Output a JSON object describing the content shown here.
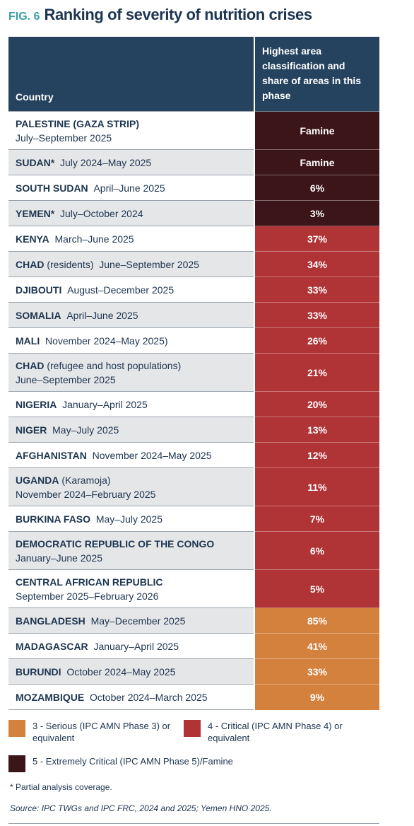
{
  "header": {
    "fig": "FIG. 6",
    "title": "Ranking of severity of nutrition crises"
  },
  "table": {
    "header_color": "#25435f",
    "columns": [
      "Country",
      "Highest area classification and share of areas in this phase"
    ],
    "rows": [
      {
        "name": "PALESTINE (GAZA STRIP)",
        "period": "July–September 2025",
        "value": "Famine",
        "color": "#3c1518"
      },
      {
        "name": "SUDAN*",
        "period": "July 2024–May 2025",
        "value": "Famine",
        "color": "#3c1518"
      },
      {
        "name": "SOUTH SUDAN",
        "period": "April–June 2025",
        "value": "6%",
        "color": "#3c1518"
      },
      {
        "name": "YEMEN*",
        "period": "July–October 2024",
        "value": "3%",
        "color": "#3c1518"
      },
      {
        "name": "KENYA",
        "period": "March–June 2025",
        "value": "37%",
        "color": "#b03335"
      },
      {
        "name": "CHAD",
        "note": "(residents)",
        "period": "June–September 2025",
        "value": "34%",
        "color": "#b03335"
      },
      {
        "name": "DJIBOUTI",
        "period": "August–December 2025",
        "value": "33%",
        "color": "#b03335"
      },
      {
        "name": "SOMALIA",
        "period": "April–June 2025",
        "value": "33%",
        "color": "#b03335"
      },
      {
        "name": "MALI",
        "period": "November 2024–May 2025)",
        "value": "26%",
        "color": "#b03335"
      },
      {
        "name": "CHAD",
        "note": "(refugee and host populations)",
        "period": "June–September 2025",
        "value": "21%",
        "color": "#b03335"
      },
      {
        "name": "NIGERIA",
        "period": "January–April 2025",
        "value": "20%",
        "color": "#b03335"
      },
      {
        "name": "NIGER",
        "period": "May–July 2025",
        "value": "13%",
        "color": "#b03335"
      },
      {
        "name": "AFGHANISTAN",
        "period": "November 2024–May 2025",
        "value": "12%",
        "color": "#b03335"
      },
      {
        "name": "UGANDA",
        "note": "(Karamoja)",
        "period": "November 2024–February 2025",
        "value": "11%",
        "color": "#b03335"
      },
      {
        "name": "BURKINA FASO",
        "period": "May–July 2025",
        "value": "7%",
        "color": "#b03335"
      },
      {
        "name": "DEMOCRATIC REPUBLIC OF THE CONGO",
        "period": "January–June 2025",
        "value": "6%",
        "color": "#b03335"
      },
      {
        "name": "CENTRAL AFRICAN REPUBLIC",
        "period": "September 2025–February 2026",
        "value": "5%",
        "color": "#b03335"
      },
      {
        "name": "BANGLADESH",
        "period": "May–December 2025",
        "value": "85%",
        "color": "#d4813e"
      },
      {
        "name": "MADAGASCAR",
        "period": "January–April 2025",
        "value": "41%",
        "color": "#d4813e"
      },
      {
        "name": "BURUNDI",
        "period": "October 2024–May 2025",
        "value": "33%",
        "color": "#d4813e"
      },
      {
        "name": "MOZAMBIQUE",
        "period": "October 2024–March 2025",
        "value": "9%",
        "color": "#d4813e"
      }
    ]
  },
  "legend": [
    {
      "color": "#d4813e",
      "label": "3 - Serious (IPC AMN Phase 3) or equivalent"
    },
    {
      "color": "#b03335",
      "label": "4 - Critical (IPC AMN Phase 4) or equivalent"
    },
    {
      "color": "#3c1518",
      "label": "5 - Extremely Critical (IPC AMN Phase 5)/Famine"
    }
  ],
  "footnote": "*  Partial analysis coverage.",
  "source": "Source: IPC TWGs and IPC FRC, 2024 and 2025; Yemen HNO 2025."
}
